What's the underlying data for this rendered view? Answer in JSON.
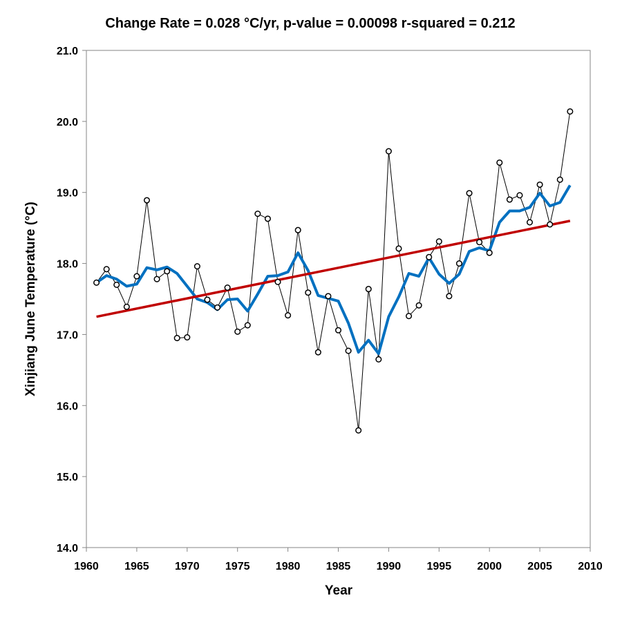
{
  "chart_data": {
    "type": "line",
    "title": "Change Rate =  0.028 °C/yr,  p-value =  0.00098  r-squared =  0.212",
    "xlabel": "Year",
    "ylabel": "Xinjiang June Temperature (°C)",
    "xlim": [
      1960,
      2010
    ],
    "ylim": [
      14.0,
      21.0
    ],
    "x_ticks": [
      "1960",
      "1965",
      "1970",
      "1975",
      "1980",
      "1985",
      "1990",
      "1995",
      "2000",
      "2005",
      "2010"
    ],
    "y_ticks": [
      "14.0",
      "15.0",
      "16.0",
      "17.0",
      "18.0",
      "19.0",
      "20.0",
      "21.0"
    ],
    "grid": false,
    "legend": "none",
    "series": [
      {
        "style": "line-with-open-circle-markers",
        "color": "#000000",
        "x": [
          1961,
          1962,
          1963,
          1964,
          1965,
          1966,
          1967,
          1968,
          1969,
          1970,
          1971,
          1972,
          1973,
          1974,
          1975,
          1976,
          1977,
          1978,
          1979,
          1980,
          1981,
          1982,
          1983,
          1984,
          1985,
          1986,
          1987,
          1988,
          1989,
          1990,
          1991,
          1992,
          1993,
          1994,
          1995,
          1996,
          1997,
          1998,
          1999,
          2000,
          2001,
          2002,
          2003,
          2004,
          2005,
          2006,
          2007,
          2008
        ],
        "y": [
          17.73,
          17.92,
          17.7,
          17.39,
          17.82,
          18.89,
          17.78,
          17.89,
          16.95,
          16.96,
          17.96,
          17.49,
          17.38,
          17.66,
          17.04,
          17.13,
          18.7,
          18.63,
          17.74,
          17.27,
          18.47,
          17.59,
          16.75,
          17.54,
          17.06,
          16.77,
          15.65,
          17.64,
          16.65,
          19.58,
          18.21,
          17.26,
          17.41,
          18.09,
          18.31,
          17.54,
          18.0,
          18.99,
          18.3,
          18.15,
          19.42,
          18.9,
          18.96,
          18.58,
          19.11,
          18.55,
          19.18,
          20.14
        ]
      },
      {
        "style": "smoothed-line",
        "color": "#0070C0",
        "x": [
          1961,
          1962,
          1963,
          1964,
          1965,
          1966,
          1967,
          1968,
          1969,
          1970,
          1971,
          1972,
          1973,
          1974,
          1975,
          1976,
          1977,
          1978,
          1979,
          1980,
          1981,
          1982,
          1983,
          1984,
          1985,
          1986,
          1987,
          1988,
          1989,
          1990,
          1991,
          1992,
          1993,
          1994,
          1995,
          1996,
          1997,
          1998,
          1999,
          2000,
          2001,
          2002,
          2003,
          2004,
          2005,
          2006,
          2007,
          2008
        ],
        "y": [
          17.73,
          17.83,
          17.78,
          17.68,
          17.71,
          17.94,
          17.91,
          17.95,
          17.86,
          17.68,
          17.5,
          17.45,
          17.35,
          17.49,
          17.5,
          17.33,
          17.57,
          17.82,
          17.83,
          17.88,
          18.15,
          17.9,
          17.55,
          17.51,
          17.47,
          17.16,
          16.75,
          16.92,
          16.73,
          17.25,
          17.53,
          17.86,
          17.82,
          18.08,
          17.85,
          17.72,
          17.85,
          18.17,
          18.22,
          18.18,
          18.58,
          18.74,
          18.74,
          18.79,
          18.99,
          18.81,
          18.86,
          19.1
        ]
      },
      {
        "style": "trend-line",
        "color": "#C00000",
        "x": [
          1961,
          2008
        ],
        "y": [
          17.25,
          18.6
        ]
      }
    ]
  }
}
